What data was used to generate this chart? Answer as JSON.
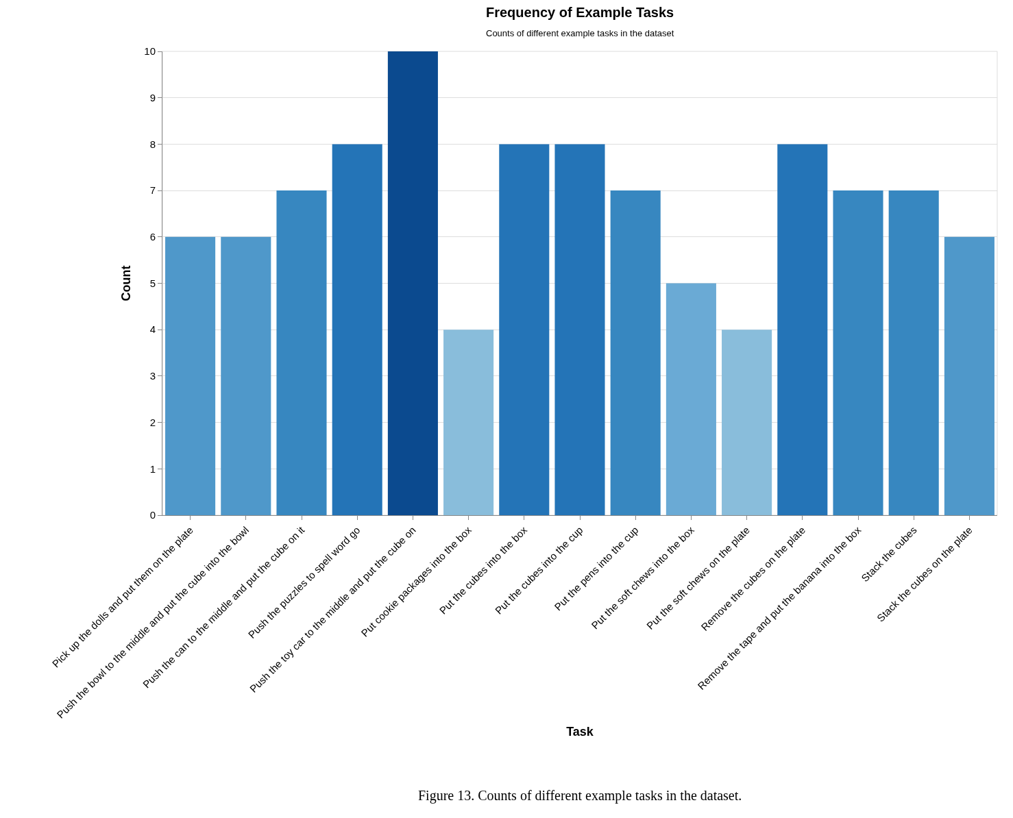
{
  "chart_data": {
    "type": "bar",
    "title": "Frequency of Example Tasks",
    "subtitle": "Counts of different example tasks in the dataset",
    "xlabel": "Task",
    "ylabel": "Count",
    "categories": [
      "Pick up the dolls and put them on the plate",
      "Push the bowl to the middle and put the cube into the bowl",
      "Push the can to the middle and put the cube on it",
      "Push the puzzles to spell word go",
      "Push the toy car to the middle and put the cube on",
      "Put cookie packages into the box",
      "Put the cubes into the box",
      "Put the cubes into the cup",
      "Put the pens into the cup",
      "Put the soft chews into the box",
      "Put the soft chews on the plate",
      "Remove the cubes on the plate",
      "Remove the tape and put the banana into the box",
      "Stack the cubes",
      "Stack the cubes on the plate"
    ],
    "values": [
      6,
      6,
      7,
      8,
      10,
      4,
      8,
      8,
      7,
      5,
      4,
      8,
      7,
      7,
      6
    ],
    "colors": [
      "#4f98ca",
      "#4f98ca",
      "#3787c0",
      "#2474b7",
      "#0b4a8f",
      "#89bddb",
      "#2474b7",
      "#2474b7",
      "#3787c0",
      "#6aaad5",
      "#89bddb",
      "#2474b7",
      "#3787c0",
      "#3787c0",
      "#4f98ca"
    ],
    "ylim": [
      0,
      10
    ],
    "yticks": [
      0,
      1,
      2,
      3,
      4,
      5,
      6,
      7,
      8,
      9,
      10
    ],
    "grid": "y",
    "annotations": [
      "Figure 13. Counts of different example tasks in the dataset."
    ]
  }
}
